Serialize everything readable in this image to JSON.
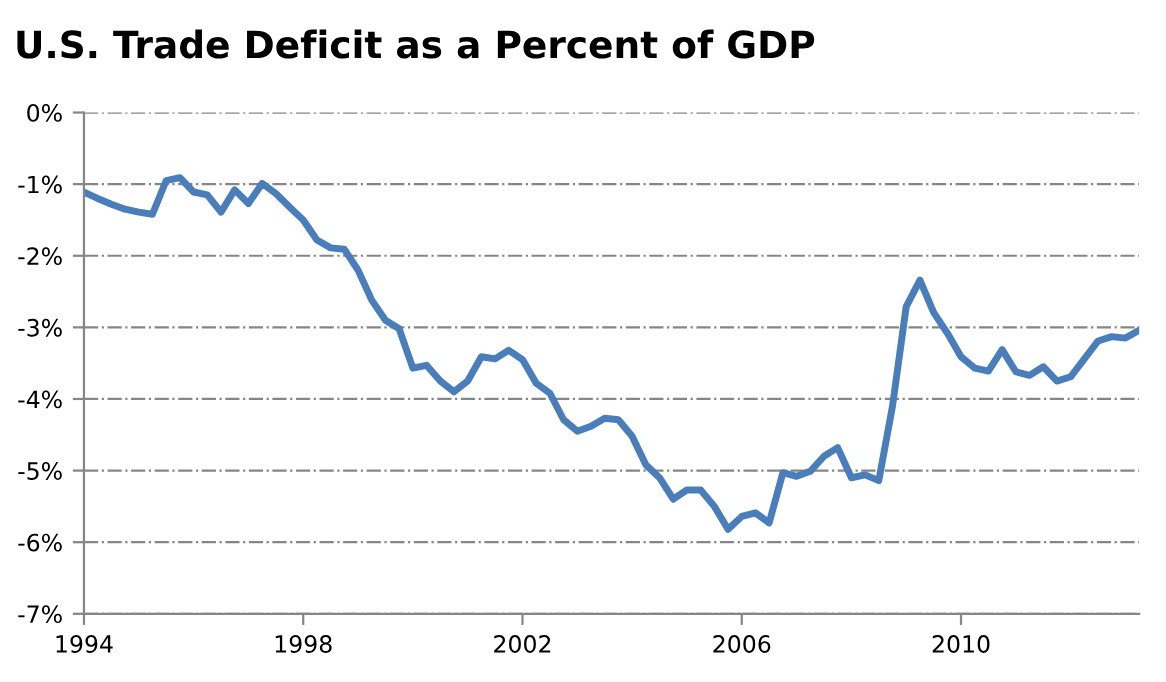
{
  "chart_data": {
    "type": "line",
    "title": "U.S. Trade Deficit as a Percent of GDP",
    "x": [
      1994,
      1994.25,
      1994.5,
      1994.75,
      1995,
      1995.25,
      1995.5,
      1995.75,
      1996,
      1996.25,
      1996.5,
      1996.75,
      1997,
      1997.25,
      1997.5,
      1997.75,
      1998,
      1998.25,
      1998.5,
      1998.75,
      1999,
      1999.25,
      1999.5,
      1999.75,
      2000,
      2000.25,
      2000.5,
      2000.75,
      2001,
      2001.25,
      2001.5,
      2001.75,
      2002,
      2002.25,
      2002.5,
      2002.75,
      2003,
      2003.25,
      2003.5,
      2003.75,
      2004,
      2004.25,
      2004.5,
      2004.75,
      2005,
      2005.25,
      2005.5,
      2005.75,
      2006,
      2006.25,
      2006.5,
      2006.75,
      2007,
      2007.25,
      2007.5,
      2007.75,
      2008,
      2008.25,
      2008.5,
      2008.75,
      2009,
      2009.25,
      2009.5,
      2009.75,
      2010,
      2010.25,
      2010.5,
      2010.75,
      2011,
      2011.25,
      2011.5,
      2011.75,
      2012,
      2012.25,
      2012.5,
      2012.75,
      2013,
      2013.25
    ],
    "series": [
      {
        "color": "#4a7ebb",
        "values": [
          -1.11,
          -1.2,
          -1.28,
          -1.35,
          -1.39,
          -1.42,
          -0.95,
          -0.91,
          -1.11,
          -1.15,
          -1.39,
          -1.08,
          -1.27,
          -0.99,
          -1.13,
          -1.32,
          -1.5,
          -1.78,
          -1.89,
          -1.91,
          -2.2,
          -2.62,
          -2.9,
          -3.02,
          -3.57,
          -3.53,
          -3.75,
          -3.9,
          -3.75,
          -3.41,
          -3.44,
          -3.32,
          -3.45,
          -3.78,
          -3.92,
          -4.29,
          -4.45,
          -4.38,
          -4.27,
          -4.29,
          -4.52,
          -4.92,
          -5.1,
          -5.4,
          -5.27,
          -5.27,
          -5.5,
          -5.82,
          -5.64,
          -5.59,
          -5.73,
          -5.03,
          -5.08,
          -5.01,
          -4.8,
          -4.68,
          -5.1,
          -5.06,
          -5.14,
          -4.1,
          -2.71,
          -2.34,
          -2.79,
          -3.08,
          -3.41,
          -3.57,
          -3.61,
          -3.31,
          -3.62,
          -3.67,
          -3.55,
          -3.75,
          -3.69,
          -3.44,
          -3.19,
          -3.13,
          -3.15,
          -3.04
        ]
      }
    ],
    "xlim": [
      1994,
      2013.25
    ],
    "xticks": [
      1994,
      1998,
      2002,
      2006,
      2010
    ],
    "ylim": [
      -7,
      0
    ],
    "yticks": [
      {
        "value": 0,
        "label": "0%"
      },
      {
        "value": -1,
        "label": "-1%"
      },
      {
        "value": -2,
        "label": "-2%"
      },
      {
        "value": -3,
        "label": "-3%"
      },
      {
        "value": -4,
        "label": "-4%"
      },
      {
        "value": -5,
        "label": "-5%"
      },
      {
        "value": -6,
        "label": "-6%"
      },
      {
        "value": -7,
        "label": "-7%"
      }
    ],
    "grid": "y",
    "marker": "none",
    "line_style": "solid"
  }
}
